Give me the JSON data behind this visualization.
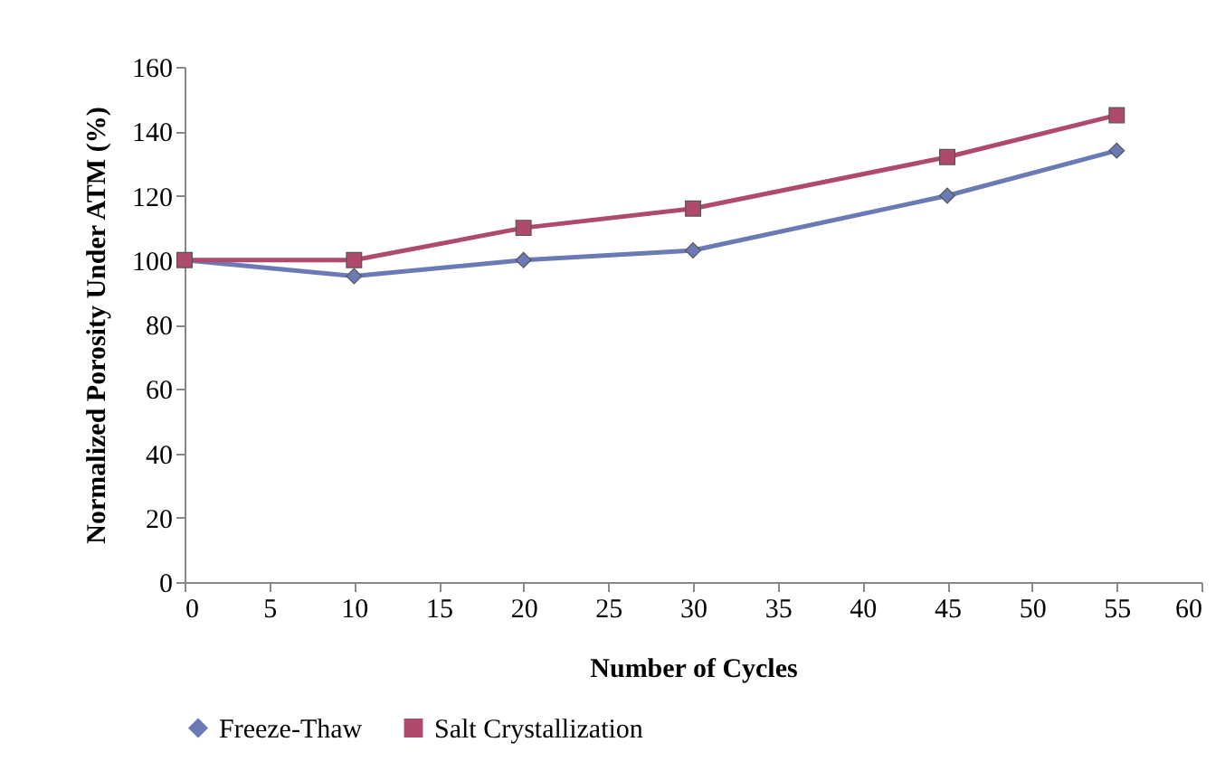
{
  "chart_data": {
    "type": "line",
    "xlabel": "Number of Cycles",
    "ylabel": "Normalized Porosity Under ATM (%)",
    "x": [
      0,
      10,
      20,
      30,
      45,
      55
    ],
    "series": [
      {
        "name": "Freeze-Thaw",
        "color": "#6a7ab5",
        "marker": "diamond",
        "values": [
          100,
          95,
          100,
          103,
          120,
          134
        ]
      },
      {
        "name": "Salt Crystallization",
        "color": "#b04a6c",
        "marker": "square",
        "values": [
          100,
          100,
          110,
          116,
          132,
          145
        ]
      }
    ],
    "xlim": [
      0,
      60
    ],
    "xticks": [
      0,
      5,
      10,
      15,
      20,
      25,
      30,
      35,
      40,
      45,
      50,
      55,
      60
    ],
    "ylim": [
      0,
      160
    ],
    "yticks": [
      0,
      20,
      40,
      60,
      80,
      100,
      120,
      140,
      160
    ],
    "grid": false,
    "legend": "bottom",
    "line_style": "solid"
  }
}
